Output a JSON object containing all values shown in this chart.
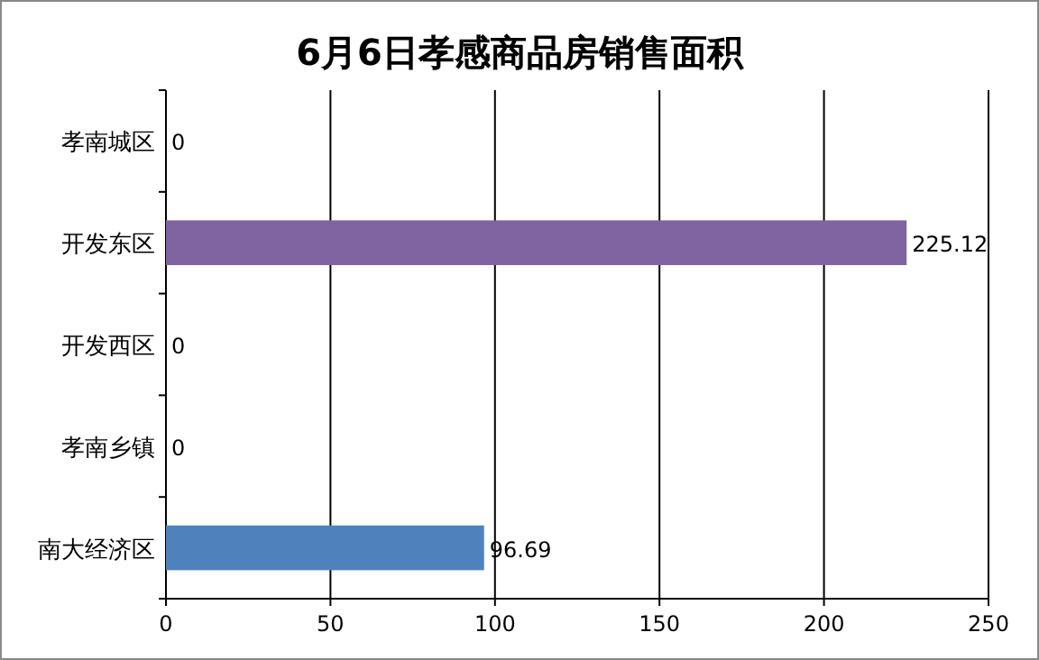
{
  "chart_data": {
    "type": "bar",
    "orientation": "horizontal",
    "title": "6月6日孝感商品房销售面积",
    "categories": [
      "孝南城区",
      "开发东区",
      "开发西区",
      "孝南乡镇",
      "南大经济区"
    ],
    "values": [
      0,
      225.12,
      0,
      0,
      96.69
    ],
    "colors": [
      "#4f81bd",
      "#8064a2",
      "#4f81bd",
      "#4f81bd",
      "#4f81bd"
    ],
    "xlim": [
      0,
      250
    ],
    "xticks": [
      0,
      50,
      100,
      150,
      200,
      250
    ],
    "grid": "x",
    "data_labels": true
  }
}
